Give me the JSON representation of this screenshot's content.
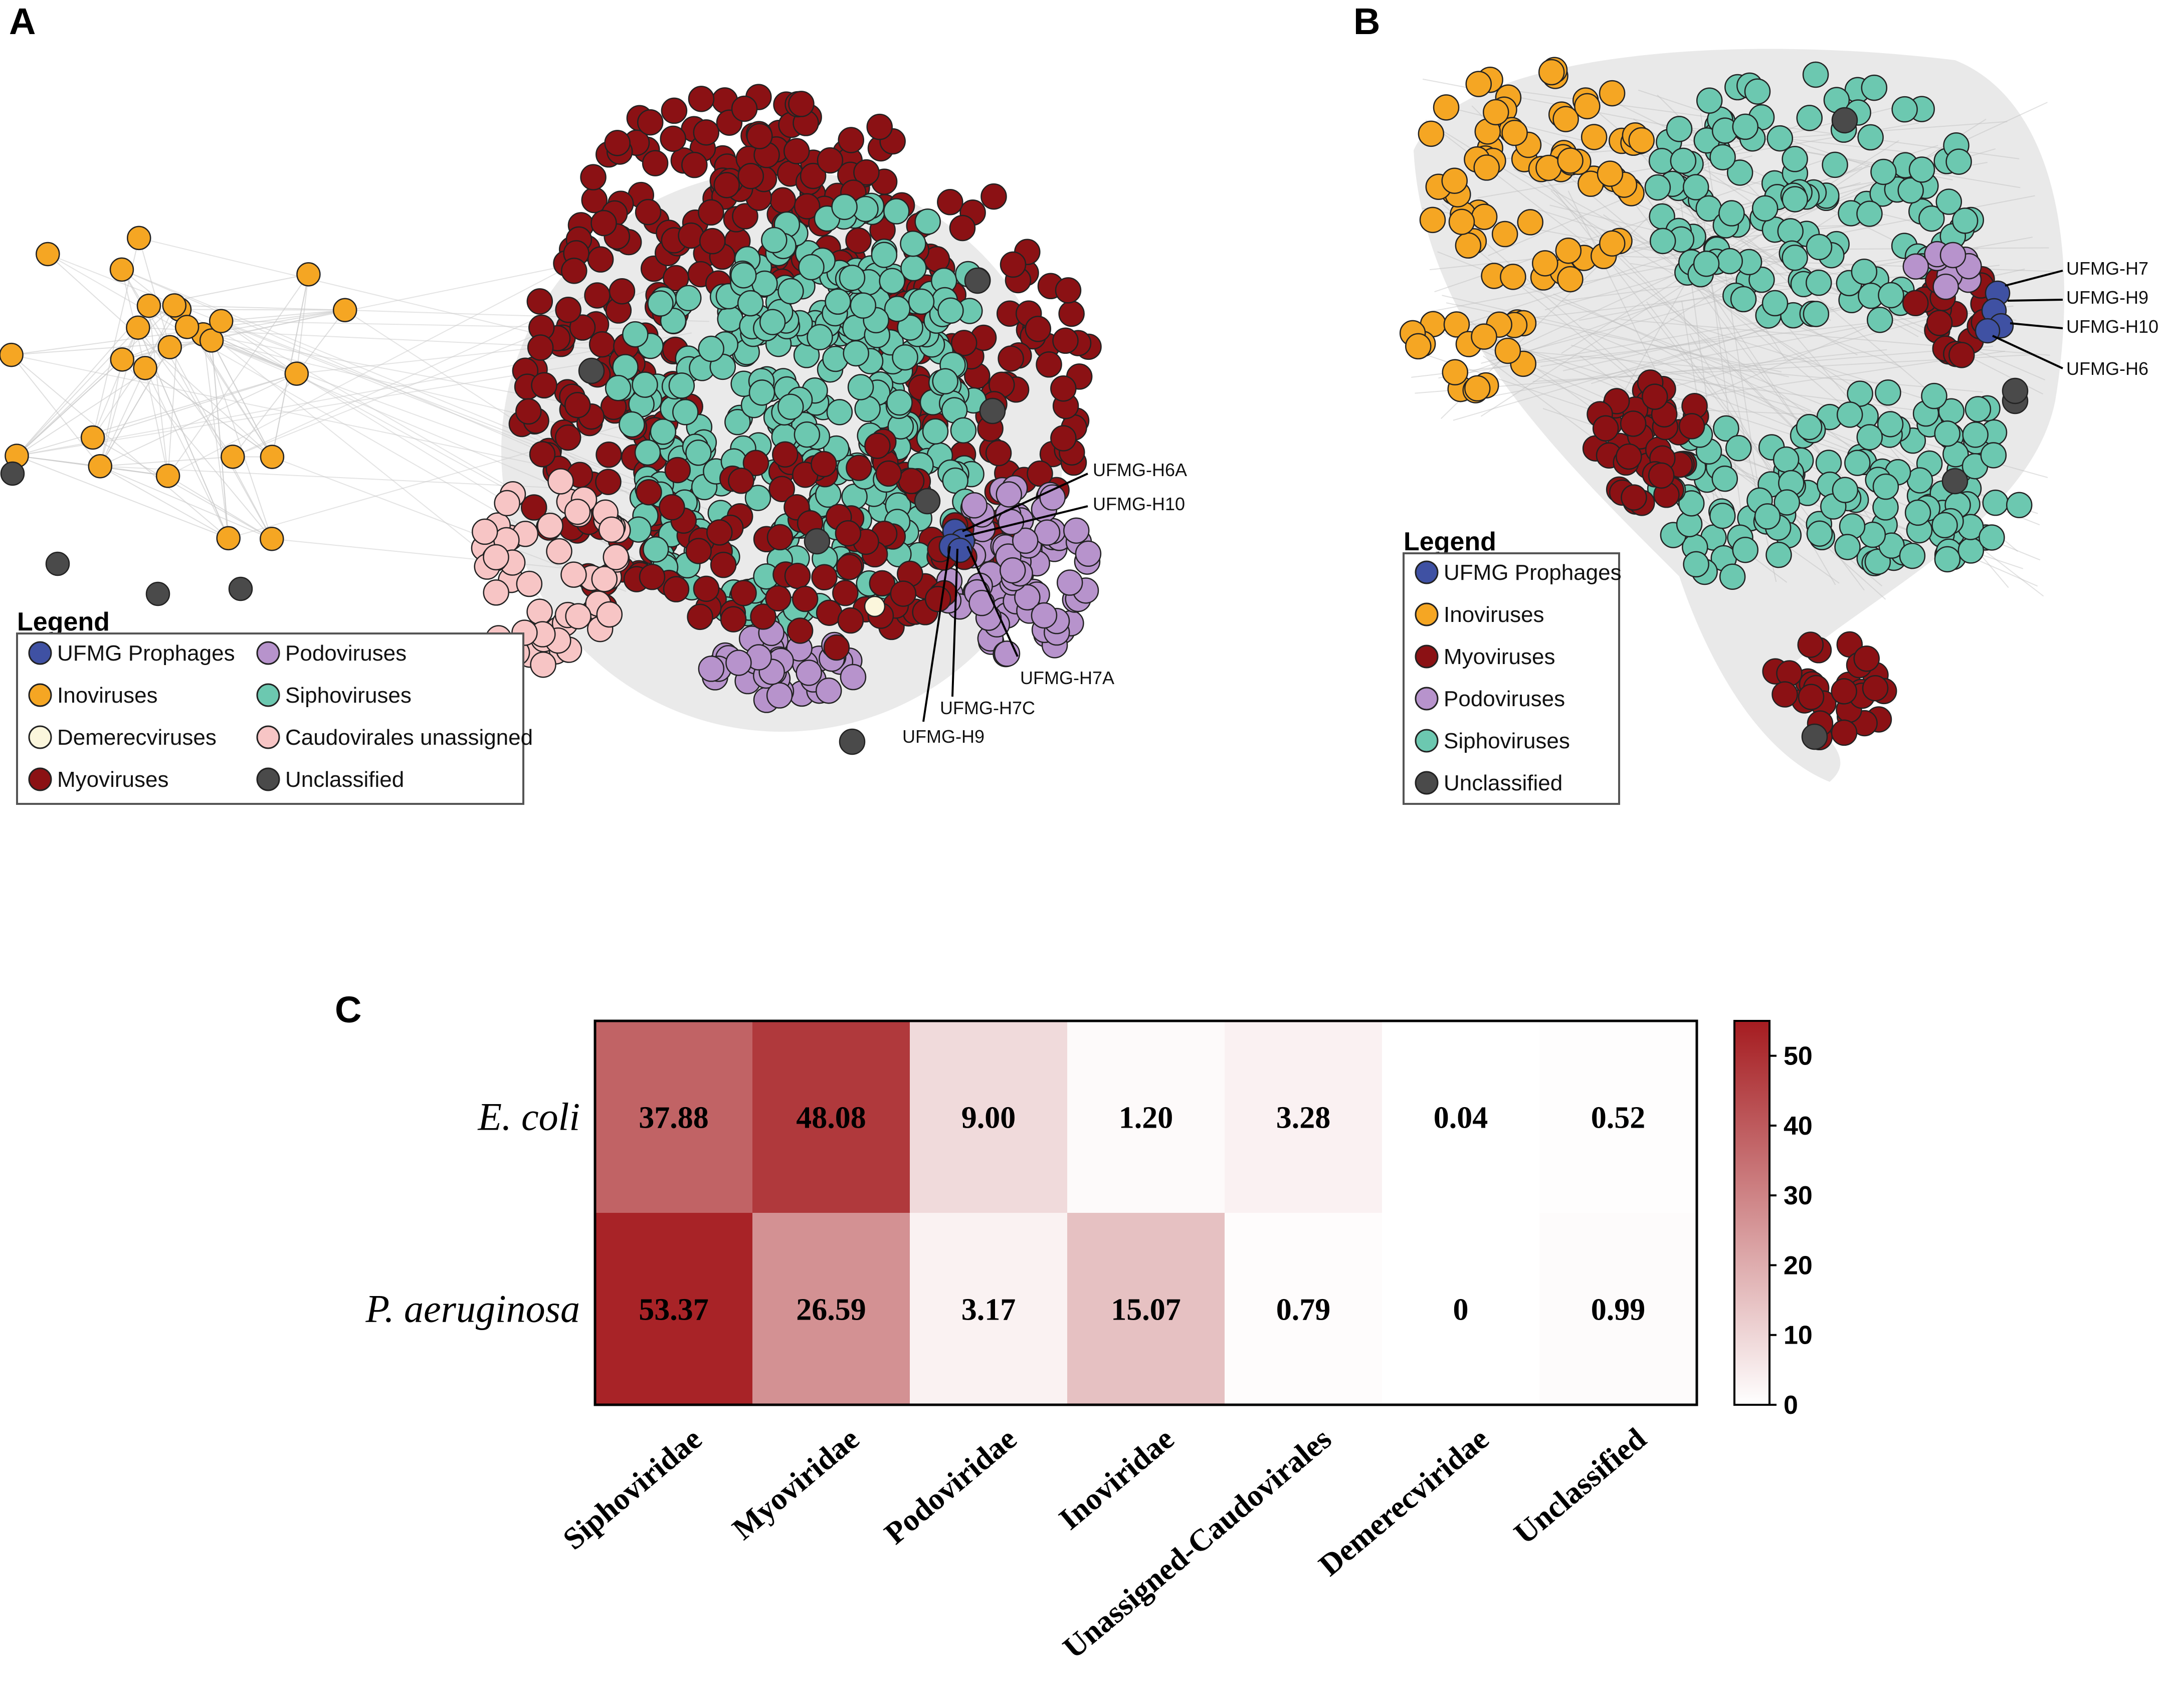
{
  "panels": {
    "a": "A",
    "b": "B",
    "c": "C"
  },
  "colors": {
    "ufmg": "#3f51a3",
    "ino": "#f5a623",
    "demerec": "#fbf6dc",
    "myo": "#8b1114",
    "podo": "#b793cc",
    "sipho": "#6cc8b0",
    "caudo": "#f7c5c5",
    "uncl": "#4a4a4a",
    "edge": "#c9c9c9"
  },
  "legend_a": {
    "title": "Legend",
    "items": [
      {
        "label": "UFMG Prophages",
        "color_key": "ufmg"
      },
      {
        "label": "Inoviruses",
        "color_key": "ino"
      },
      {
        "label": "Demerecviruses",
        "color_key": "demerec"
      },
      {
        "label": "Myoviruses",
        "color_key": "myo"
      },
      {
        "label": "Podoviruses",
        "color_key": "podo"
      },
      {
        "label": "Siphoviruses",
        "color_key": "sipho"
      },
      {
        "label": "Caudovirales unassigned",
        "color_key": "caudo"
      },
      {
        "label": "Unclassified",
        "color_key": "uncl"
      }
    ]
  },
  "legend_b": {
    "title": "Legend",
    "items": [
      {
        "label": "UFMG Prophages",
        "color_key": "ufmg"
      },
      {
        "label": "Inoviruses",
        "color_key": "ino"
      },
      {
        "label": "Myoviruses",
        "color_key": "myo"
      },
      {
        "label": "Podoviruses",
        "color_key": "podo"
      },
      {
        "label": "Siphoviruses",
        "color_key": "sipho"
      },
      {
        "label": "Unclassified",
        "color_key": "uncl"
      }
    ]
  },
  "callouts_a": [
    "UFMG-H6A",
    "UFMG-H10",
    "UFMG-H7A",
    "UFMG-H7C",
    "UFMG-H9"
  ],
  "callouts_b": [
    "UFMG-H7",
    "UFMG-H9",
    "UFMG-H10",
    "UFMG-H6"
  ],
  "chart_data": {
    "type": "heatmap",
    "title": "",
    "rows": [
      "E. coli",
      "P. aeruginosa"
    ],
    "columns": [
      "Siphoviridae",
      "Myoviridae",
      "Podoviridae",
      "Inoviridae",
      "Unassigned-Caudovirales",
      "Demerecviridae",
      "Unclassified"
    ],
    "values": [
      [
        37.88,
        48.08,
        9.0,
        1.2,
        3.28,
        0.04,
        0.52
      ],
      [
        53.37,
        26.59,
        3.17,
        15.07,
        0.79,
        0,
        0.99
      ]
    ],
    "value_labels": [
      [
        "37.88",
        "48.08",
        "9.00",
        "1.20",
        "3.28",
        "0.04",
        "0.52"
      ],
      [
        "53.37",
        "26.59",
        "3.17",
        "15.07",
        "0.79",
        "0",
        "0.99"
      ]
    ],
    "color_range": [
      0,
      55
    ],
    "color_low": "#ffffff",
    "color_high": "#a51c20",
    "colorbar_ticks": [
      0,
      10,
      20,
      30,
      40,
      50
    ]
  }
}
